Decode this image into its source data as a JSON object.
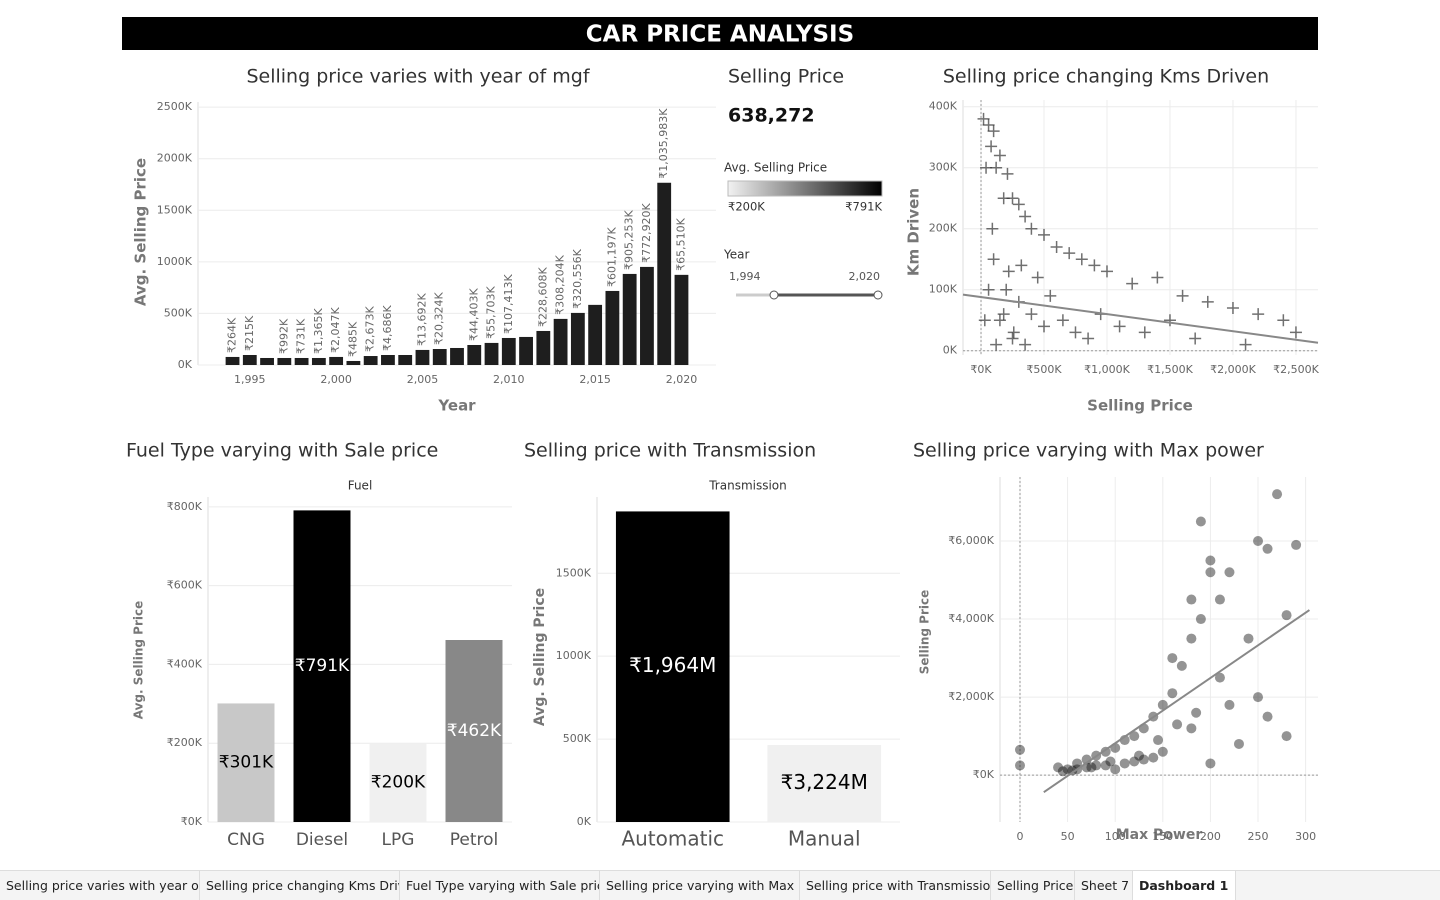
{
  "title": "CAR PRICE ANALYSIS",
  "kpi": {
    "title": "Selling Price",
    "value": "638,272"
  },
  "color_legend": {
    "title": "Avg. Selling Price",
    "min_label": "₹200K",
    "max_label": "₹791K"
  },
  "year_filter": {
    "title": "Year",
    "min_label": "1,994",
    "max_label": "2,020"
  },
  "tabs": [
    "Selling price varies with year of ...",
    "Selling price changing Kms Driven",
    "Fuel Type varying with Sale price",
    "Selling price varying with Max p...",
    "Selling price with Transmission",
    "Selling Price",
    "Sheet 7",
    "Dashboard 1"
  ],
  "chart_data": [
    {
      "type": "bar",
      "title": "Selling price varies with year of mgf",
      "x_label": "Year",
      "y_label": "Avg. Selling Price",
      "x": [
        1994,
        1995,
        1996,
        1997,
        1998,
        1999,
        2000,
        2001,
        2002,
        2003,
        2004,
        2005,
        2006,
        2007,
        2008,
        2009,
        2010,
        2011,
        2012,
        2013,
        2014,
        2015,
        2016,
        2017,
        2018,
        2019,
        2020
      ],
      "values": [
        78,
        97,
        68,
        68,
        68,
        68,
        78,
        39,
        87,
        97,
        97,
        146,
        155,
        165,
        194,
        214,
        262,
        272,
        330,
        447,
        505,
        583,
        718,
        883,
        951,
        1767,
        874
      ],
      "labels": [
        "₹264K",
        "₹215K",
        null,
        "₹992K",
        "₹731K",
        "₹1,365K",
        "₹2,047K",
        "₹485K",
        "₹2,673K",
        "₹4,686K",
        null,
        "₹13,692K",
        "₹20,324K",
        null,
        "₹44,403K",
        "₹55,703K",
        "₹107,413K",
        null,
        "₹228,608K",
        "₹308,204K",
        "₹320,556K",
        null,
        "₹601,197K",
        "₹905,253K",
        "₹772,920K",
        "₹1,035,983K",
        "₹65,510K"
      ],
      "color": "#1e1e1e",
      "xlim": [
        1992,
        2022
      ],
      "xticks": [
        {
          "value": 1995,
          "label": "1,995"
        },
        {
          "value": 2000,
          "label": "2,000"
        },
        {
          "value": 2005,
          "label": "2,005"
        },
        {
          "value": 2010,
          "label": "2,010"
        },
        {
          "value": 2015,
          "label": "2,015"
        },
        {
          "value": 2020,
          "label": "2,020"
        }
      ],
      "ylim": [
        0,
        2550
      ],
      "yticks": [
        {
          "value": 0,
          "label": "0K"
        },
        {
          "value": 500,
          "label": "500K"
        },
        {
          "value": 1000,
          "label": "1000K"
        },
        {
          "value": 1500,
          "label": "1500K"
        },
        {
          "value": 2000,
          "label": "2000K"
        },
        {
          "value": 2500,
          "label": "2500K"
        }
      ],
      "grid": "y"
    },
    {
      "type": "scatter",
      "marker": "plus",
      "title": "Selling price changing Kms Driven",
      "x_label": "Selling Price",
      "y_label": "Km Driven",
      "x": [
        20,
        60,
        100,
        80,
        150,
        120,
        40,
        210,
        250,
        300,
        180,
        350,
        400,
        500,
        600,
        700,
        800,
        900,
        1000,
        1200,
        1400,
        1600,
        1800,
        2000,
        2200,
        2400,
        2500,
        100,
        200,
        300,
        400,
        500,
        150,
        250,
        350,
        450,
        550,
        650,
        750,
        850,
        950,
        1100,
        1300,
        1500,
        1700,
        2100,
        60,
        30,
        120,
        180,
        90,
        220,
        320,
        260
      ],
      "values": [
        380,
        370,
        360,
        335,
        320,
        300,
        300,
        290,
        250,
        240,
        250,
        220,
        200,
        190,
        170,
        160,
        150,
        140,
        130,
        110,
        120,
        90,
        80,
        70,
        60,
        50,
        30,
        150,
        100,
        80,
        60,
        40,
        50,
        20,
        10,
        120,
        90,
        50,
        30,
        20,
        60,
        40,
        30,
        50,
        20,
        10,
        100,
        50,
        10,
        60,
        200,
        130,
        140,
        30
      ],
      "color": "#333333",
      "trend": {
        "x": [
          -143,
          2675
        ],
        "y": [
          92,
          13
        ]
      },
      "xlim": [
        -143,
        2675
      ],
      "xticks": [
        {
          "value": 0,
          "label": "₹0K"
        },
        {
          "value": 500,
          "label": "₹500K"
        },
        {
          "value": 1000,
          "label": "₹1,000K"
        },
        {
          "value": 1500,
          "label": "₹1,500K"
        },
        {
          "value": 2000,
          "label": "₹2,000K"
        },
        {
          "value": 2500,
          "label": "₹2,500K"
        }
      ],
      "ylim": [
        -7,
        411
      ],
      "yticks": [
        {
          "value": 0,
          "label": "0K"
        },
        {
          "value": 100,
          "label": "100K"
        },
        {
          "value": 200,
          "label": "200K"
        },
        {
          "value": 300,
          "label": "300K"
        },
        {
          "value": 400,
          "label": "400K"
        }
      ],
      "grid": "both"
    },
    {
      "type": "bar",
      "title": "Fuel Type varying with Sale price",
      "header": "Fuel",
      "y_label": "Avg. Selling Price",
      "categories": [
        "CNG",
        "Diesel",
        "LPG",
        "Petrol"
      ],
      "values": [
        301,
        791,
        200,
        462
      ],
      "value_labels": [
        "₹301K",
        "₹791K",
        "₹200K",
        "₹462K"
      ],
      "colors": [
        "#c8c8c8",
        "#000000",
        "#f0f0f0",
        "#888888"
      ],
      "ylim": [
        0,
        825
      ],
      "yticks": [
        {
          "value": 0,
          "label": "₹0K"
        },
        {
          "value": 200,
          "label": "₹200K"
        },
        {
          "value": 400,
          "label": "₹400K"
        },
        {
          "value": 600,
          "label": "₹600K"
        },
        {
          "value": 800,
          "label": "₹800K"
        }
      ],
      "grid": "y"
    },
    {
      "type": "bar",
      "title": "Selling price with Transmission",
      "header": "Transmission",
      "y_label": "Avg. Selling Price",
      "categories": [
        "Automatic",
        "Manual"
      ],
      "values": [
        1873,
        464
      ],
      "labels": [
        "₹1,964M",
        "₹3,224M"
      ],
      "colors": [
        "#000000",
        "#f0f0f0"
      ],
      "ylim": [
        0,
        1960
      ],
      "yticks": [
        {
          "value": 0,
          "label": "0K"
        },
        {
          "value": 500,
          "label": "500K"
        },
        {
          "value": 1000,
          "label": "1000K"
        },
        {
          "value": 1500,
          "label": "1500K"
        }
      ],
      "grid": "y"
    },
    {
      "type": "scatter",
      "marker": "circle",
      "title": "Selling price varying with Max power",
      "x_label": "Max Power",
      "y_label": "Selling Price",
      "x": [
        0,
        0,
        40,
        50,
        60,
        70,
        80,
        90,
        100,
        110,
        120,
        130,
        140,
        150,
        160,
        170,
        180,
        190,
        200,
        210,
        190,
        200,
        220,
        250,
        260,
        270,
        290,
        280,
        240,
        260,
        280,
        230,
        200,
        150,
        120,
        90,
        70,
        100,
        140,
        160,
        180,
        210,
        220,
        250,
        180,
        60,
        80,
        110,
        130,
        45,
        55,
        75,
        95,
        125,
        145,
        165,
        185
      ],
      "values": [
        250,
        650,
        200,
        150,
        300,
        400,
        500,
        600,
        700,
        900,
        1000,
        1200,
        1500,
        1800,
        2100,
        2800,
        3500,
        4000,
        5500,
        4500,
        6500,
        5200,
        5200,
        6000,
        5800,
        7200,
        5900,
        4100,
        3500,
        1500,
        1000,
        800,
        300,
        600,
        350,
        250,
        200,
        150,
        450,
        3000,
        4500,
        2500,
        1800,
        2000,
        1200,
        150,
        250,
        300,
        400,
        100,
        120,
        200,
        350,
        500,
        900,
        1300,
        1600
      ],
      "color": "#111111",
      "trend": {
        "x": [
          25,
          304
        ],
        "y": [
          -436,
          4230
        ]
      },
      "xlim": [
        -21,
        313
      ],
      "xticks": [
        0,
        50,
        100,
        150,
        200,
        250,
        300
      ],
      "ylim": [
        -1200,
        7640
      ],
      "yticks": [
        {
          "value": 0,
          "label": "₹0K"
        },
        {
          "value": 2000,
          "label": "₹2,000K"
        },
        {
          "value": 4000,
          "label": "₹4,000K"
        },
        {
          "value": 6000,
          "label": "₹6,000K"
        }
      ],
      "grid": "both"
    }
  ]
}
